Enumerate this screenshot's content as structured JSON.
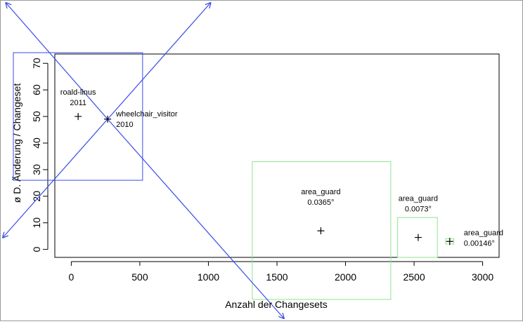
{
  "chart_data": {
    "type": "scatter",
    "xlabel": "Anzahl der Changesets",
    "ylabel": "ø D. Änderung / Changeset",
    "xlim": [
      -120,
      3120
    ],
    "ylim": [
      -3,
      73.5
    ],
    "x_ticks": [
      "0",
      "500",
      "1000",
      "1500",
      "2000",
      "2500",
      "3000"
    ],
    "y_ticks": [
      "0",
      "10",
      "20",
      "30",
      "40",
      "50",
      "60",
      "70"
    ],
    "grid": false,
    "colors": {
      "blue": "#3a4be8",
      "green": "#8fe38f",
      "black": "#000000"
    },
    "points": [
      {
        "x": 50,
        "y": 50,
        "label_line1": "roald-linus",
        "label_line2": "2011"
      },
      {
        "x": 265,
        "y": 49,
        "label_line1": "wheelchair_visitor",
        "label_line2": "2010"
      },
      {
        "x": 1820,
        "y": 7,
        "label_line1": "area_guard",
        "label_line2": "0.0365°"
      },
      {
        "x": 2530,
        "y": 4.5,
        "label_line1": "area_guard",
        "label_line2": "0.0073°"
      },
      {
        "x": 2760,
        "y": 3,
        "label_line1": "area_guard",
        "label_line2": "0.00146°"
      }
    ],
    "boxes": [
      {
        "color": "blue",
        "x0": -520,
        "x1": 520,
        "y0": 26,
        "y1": 74
      },
      {
        "color": "green",
        "x0": 1320,
        "x1": 2330,
        "y0": -20,
        "y1": 33
      },
      {
        "color": "green",
        "x0": 2380,
        "x1": 2670,
        "y0": -3,
        "y1": 12
      },
      {
        "color": "green",
        "x0": 2730,
        "x1": 2790,
        "y0": 2,
        "y1": 4
      }
    ],
    "arrows": [
      {
        "color": "blue",
        "from_x": 265,
        "from_y": 49,
        "to_x": 1140,
        "to_y": 100
      },
      {
        "color": "blue",
        "from_x": 265,
        "from_y": 49,
        "to_x": -610,
        "to_y": -2
      },
      {
        "color": "blue",
        "from_x": 265,
        "from_y": 49,
        "to_x": 1620,
        "to_y": -30
      },
      {
        "color": "blue",
        "from_x": 265,
        "from_y": 49,
        "to_x": -600,
        "to_y": 100
      }
    ]
  }
}
